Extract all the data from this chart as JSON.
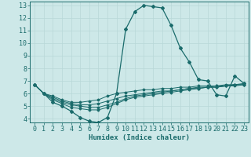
{
  "xlabel": "Humidex (Indice chaleur)",
  "xlim": [
    -0.5,
    23.5
  ],
  "ylim": [
    3.7,
    13.3
  ],
  "yticks": [
    4,
    5,
    6,
    7,
    8,
    9,
    10,
    11,
    12,
    13
  ],
  "xticks": [
    0,
    1,
    2,
    3,
    4,
    5,
    6,
    7,
    8,
    9,
    10,
    11,
    12,
    13,
    14,
    15,
    16,
    17,
    18,
    19,
    20,
    21,
    22,
    23
  ],
  "bg_color": "#cde8e8",
  "grid_color": "#b8d8d8",
  "line_color": "#1a6b6b",
  "lines": [
    [
      6.7,
      6.0,
      5.3,
      5.0,
      4.6,
      4.1,
      3.8,
      3.7,
      4.1,
      6.0,
      11.1,
      12.5,
      13.0,
      12.9,
      12.8,
      11.4,
      9.6,
      8.5,
      7.1,
      7.0,
      5.9,
      5.8,
      7.4,
      6.8
    ],
    [
      6.7,
      6.0,
      5.8,
      5.5,
      5.3,
      5.3,
      5.4,
      5.5,
      5.8,
      6.0,
      6.1,
      6.2,
      6.3,
      6.3,
      6.4,
      6.4,
      6.5,
      6.5,
      6.6,
      6.6,
      6.6,
      6.7,
      6.7,
      6.7
    ],
    [
      6.7,
      6.0,
      5.7,
      5.4,
      5.2,
      5.1,
      5.1,
      5.2,
      5.4,
      5.6,
      5.8,
      5.9,
      6.0,
      6.1,
      6.2,
      6.2,
      6.3,
      6.4,
      6.4,
      6.5,
      6.5,
      6.6,
      6.6,
      6.7
    ],
    [
      6.7,
      6.0,
      5.6,
      5.3,
      5.1,
      5.0,
      4.9,
      4.9,
      5.1,
      5.3,
      5.6,
      5.8,
      5.9,
      6.0,
      6.1,
      6.2,
      6.3,
      6.4,
      6.5,
      6.5,
      6.6,
      6.6,
      6.7,
      6.7
    ],
    [
      6.7,
      6.0,
      5.5,
      5.2,
      4.9,
      4.8,
      4.7,
      4.7,
      4.9,
      5.2,
      5.5,
      5.7,
      5.8,
      5.9,
      6.0,
      6.1,
      6.2,
      6.3,
      6.4,
      6.5,
      6.5,
      6.6,
      6.7,
      6.8
    ]
  ],
  "tick_fontsize": 6,
  "xlabel_fontsize": 6.5
}
